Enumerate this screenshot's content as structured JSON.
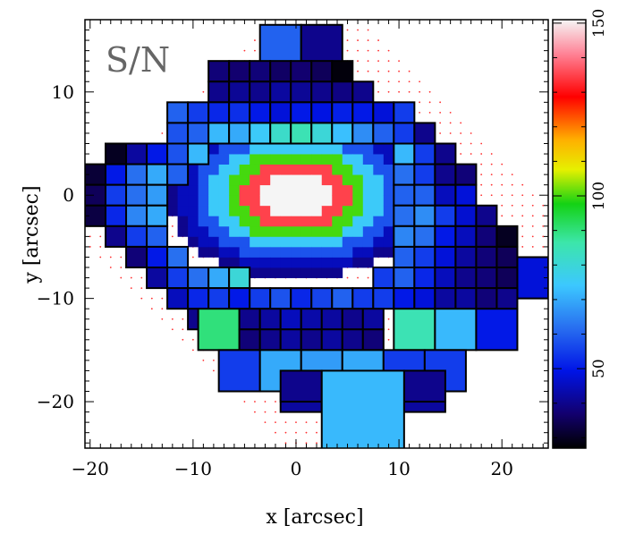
{
  "chart_data": {
    "type": "heatmap",
    "title": "S/N",
    "xlabel": "x [arcsec]",
    "ylabel": "y [arcsec]",
    "xlim": [
      -20.5,
      24.5
    ],
    "ylim": [
      -24.5,
      17
    ],
    "xticks": [
      -20,
      -10,
      0,
      10,
      20
    ],
    "yticks": [
      -20,
      -10,
      0,
      10
    ],
    "colorbar": {
      "range": [
        27,
        151
      ],
      "ticks": [
        50,
        100,
        150
      ]
    },
    "center_bins": [
      {
        "xc": 0,
        "yc": 0,
        "rx": 12.5,
        "ry": 8,
        "cell": 1,
        "rings": [
          {
            "r": 0.3,
            "value": 151
          },
          {
            "r": 0.42,
            "value": 135
          },
          {
            "r": 0.55,
            "value": 100
          },
          {
            "r": 0.68,
            "value": 75
          },
          {
            "r": 0.8,
            "value": 58
          },
          {
            "r": 0.92,
            "value": 45
          },
          {
            "r": 1.01,
            "value": 40
          }
        ]
      }
    ],
    "voronoi_bins": [
      {
        "x": -1.5,
        "y": 14.5,
        "w": 4,
        "h": 4,
        "value": 60
      },
      {
        "x": 2.5,
        "y": 14.5,
        "w": 4,
        "h": 4,
        "value": 40
      },
      {
        "x": -7.5,
        "y": 12,
        "w": 2,
        "h": 2,
        "value": 38
      },
      {
        "x": -5.5,
        "y": 12,
        "w": 2,
        "h": 2,
        "value": 37
      },
      {
        "x": -3.5,
        "y": 12,
        "w": 2,
        "h": 2,
        "value": 38
      },
      {
        "x": -1.5,
        "y": 12,
        "w": 2,
        "h": 2,
        "value": 36
      },
      {
        "x": 0.5,
        "y": 12,
        "w": 2,
        "h": 2,
        "value": 37
      },
      {
        "x": 2.5,
        "y": 12,
        "w": 2,
        "h": 2,
        "value": 35
      },
      {
        "x": 4.5,
        "y": 12,
        "w": 2,
        "h": 2,
        "value": 28
      },
      {
        "x": -7.5,
        "y": 10,
        "w": 2,
        "h": 2,
        "value": 40
      },
      {
        "x": -5.5,
        "y": 10,
        "w": 2,
        "h": 2,
        "value": 41
      },
      {
        "x": -3.5,
        "y": 10,
        "w": 2,
        "h": 2,
        "value": 40
      },
      {
        "x": -1.5,
        "y": 10,
        "w": 2,
        "h": 2,
        "value": 42
      },
      {
        "x": 0.5,
        "y": 10,
        "w": 2,
        "h": 2,
        "value": 41
      },
      {
        "x": 2.5,
        "y": 10,
        "w": 2,
        "h": 2,
        "value": 40
      },
      {
        "x": 4.5,
        "y": 10,
        "w": 2,
        "h": 2,
        "value": 39
      },
      {
        "x": 6.5,
        "y": 10,
        "w": 2,
        "h": 2,
        "value": 40
      },
      {
        "x": -11.5,
        "y": 8,
        "w": 2,
        "h": 2,
        "value": 60
      },
      {
        "x": -9.5,
        "y": 8,
        "w": 2,
        "h": 2,
        "value": 55
      },
      {
        "x": -7.5,
        "y": 8,
        "w": 2,
        "h": 2,
        "value": 52
      },
      {
        "x": -5.5,
        "y": 8,
        "w": 2,
        "h": 2,
        "value": 53
      },
      {
        "x": -3.5,
        "y": 8,
        "w": 2,
        "h": 2,
        "value": 50
      },
      {
        "x": -1.5,
        "y": 8,
        "w": 2,
        "h": 2,
        "value": 48
      },
      {
        "x": 0.5,
        "y": 8,
        "w": 2,
        "h": 2,
        "value": 50
      },
      {
        "x": 2.5,
        "y": 8,
        "w": 2,
        "h": 2,
        "value": 49
      },
      {
        "x": 4.5,
        "y": 8,
        "w": 2,
        "h": 2,
        "value": 51
      },
      {
        "x": 6.5,
        "y": 8,
        "w": 2,
        "h": 2,
        "value": 50
      },
      {
        "x": 8.5,
        "y": 8,
        "w": 2,
        "h": 2,
        "value": 48
      },
      {
        "x": 10.5,
        "y": 8,
        "w": 2,
        "h": 2,
        "value": 55
      },
      {
        "x": -11.5,
        "y": 6,
        "w": 2,
        "h": 2,
        "value": 58
      },
      {
        "x": -9.5,
        "y": 6,
        "w": 2,
        "h": 2,
        "value": 60
      },
      {
        "x": -7.5,
        "y": 6,
        "w": 2,
        "h": 2,
        "value": 72
      },
      {
        "x": -5.5,
        "y": 6,
        "w": 2,
        "h": 2,
        "value": 70
      },
      {
        "x": -3.5,
        "y": 6,
        "w": 2,
        "h": 2,
        "value": 75
      },
      {
        "x": -1.5,
        "y": 6,
        "w": 2,
        "h": 2,
        "value": 82
      },
      {
        "x": 0.5,
        "y": 6,
        "w": 2,
        "h": 2,
        "value": 85
      },
      {
        "x": 2.5,
        "y": 6,
        "w": 2,
        "h": 2,
        "value": 80
      },
      {
        "x": 4.5,
        "y": 6,
        "w": 2,
        "h": 2,
        "value": 73
      },
      {
        "x": 6.5,
        "y": 6,
        "w": 2,
        "h": 2,
        "value": 66
      },
      {
        "x": 8.5,
        "y": 6,
        "w": 2,
        "h": 2,
        "value": 60
      },
      {
        "x": 10.5,
        "y": 6,
        "w": 2,
        "h": 2,
        "value": 55
      },
      {
        "x": 12.5,
        "y": 6,
        "w": 2,
        "h": 2,
        "value": 40
      },
      {
        "x": -17.5,
        "y": 4,
        "w": 2,
        "h": 2,
        "value": 30
      },
      {
        "x": -15.5,
        "y": 4,
        "w": 2,
        "h": 2,
        "value": 42
      },
      {
        "x": -13.5,
        "y": 4,
        "w": 2,
        "h": 2,
        "value": 50
      },
      {
        "x": -11.5,
        "y": 4,
        "w": 2,
        "h": 2,
        "value": 58
      },
      {
        "x": -9.5,
        "y": 4,
        "w": 2,
        "h": 2,
        "value": 72
      },
      {
        "x": 10.5,
        "y": 4,
        "w": 2,
        "h": 2,
        "value": 72
      },
      {
        "x": 12.5,
        "y": 4,
        "w": 2,
        "h": 2,
        "value": 55
      },
      {
        "x": 14.5,
        "y": 4,
        "w": 2,
        "h": 2,
        "value": 40
      },
      {
        "x": -19.5,
        "y": 2,
        "w": 2,
        "h": 2,
        "value": 32
      },
      {
        "x": -17.5,
        "y": 2,
        "w": 2,
        "h": 2,
        "value": 50
      },
      {
        "x": -15.5,
        "y": 2,
        "w": 2,
        "h": 2,
        "value": 62
      },
      {
        "x": -13.5,
        "y": 2,
        "w": 2,
        "h": 2,
        "value": 70
      },
      {
        "x": -11.5,
        "y": 2,
        "w": 2,
        "h": 2,
        "value": 60
      },
      {
        "x": 10.5,
        "y": 2,
        "w": 2,
        "h": 2,
        "value": 62
      },
      {
        "x": 12.5,
        "y": 2,
        "w": 2,
        "h": 2,
        "value": 55
      },
      {
        "x": 14.5,
        "y": 2,
        "w": 2,
        "h": 2,
        "value": 40
      },
      {
        "x": 16.5,
        "y": 2,
        "w": 2,
        "h": 2,
        "value": 38
      },
      {
        "x": -19.5,
        "y": 0,
        "w": 2,
        "h": 2,
        "value": 35
      },
      {
        "x": -17.5,
        "y": 0,
        "w": 2,
        "h": 2,
        "value": 55
      },
      {
        "x": -15.5,
        "y": 0,
        "w": 2,
        "h": 2,
        "value": 62
      },
      {
        "x": -13.5,
        "y": 0,
        "w": 2,
        "h": 2,
        "value": 68
      },
      {
        "x": 10.5,
        "y": 0,
        "w": 2,
        "h": 2,
        "value": 60
      },
      {
        "x": 12.5,
        "y": 0,
        "w": 2,
        "h": 2,
        "value": 60
      },
      {
        "x": 14.5,
        "y": 0,
        "w": 2,
        "h": 2,
        "value": 45
      },
      {
        "x": 16.5,
        "y": 0,
        "w": 2,
        "h": 2,
        "value": 48
      },
      {
        "x": -19.5,
        "y": -2,
        "w": 2,
        "h": 2,
        "value": 33
      },
      {
        "x": -17.5,
        "y": -2,
        "w": 2,
        "h": 2,
        "value": 52
      },
      {
        "x": -15.5,
        "y": -2,
        "w": 2,
        "h": 2,
        "value": 65
      },
      {
        "x": -13.5,
        "y": -2,
        "w": 2,
        "h": 2,
        "value": 70
      },
      {
        "x": 10.5,
        "y": -2,
        "w": 2,
        "h": 2,
        "value": 62
      },
      {
        "x": 12.5,
        "y": -2,
        "w": 2,
        "h": 2,
        "value": 66
      },
      {
        "x": 14.5,
        "y": -2,
        "w": 2,
        "h": 2,
        "value": 55
      },
      {
        "x": 16.5,
        "y": -2,
        "w": 2,
        "h": 2,
        "value": 47
      },
      {
        "x": 18.5,
        "y": -2,
        "w": 2,
        "h": 2,
        "value": 40
      },
      {
        "x": -17.5,
        "y": -4,
        "w": 2,
        "h": 2,
        "value": 40
      },
      {
        "x": -15.5,
        "y": -4,
        "w": 2,
        "h": 2,
        "value": 55
      },
      {
        "x": -13.5,
        "y": -4,
        "w": 2,
        "h": 2,
        "value": 60
      },
      {
        "x": 10.5,
        "y": -4,
        "w": 2,
        "h": 2,
        "value": 65
      },
      {
        "x": 12.5,
        "y": -4,
        "w": 2,
        "h": 2,
        "value": 62
      },
      {
        "x": 14.5,
        "y": -4,
        "w": 2,
        "h": 2,
        "value": 50
      },
      {
        "x": 16.5,
        "y": -4,
        "w": 2,
        "h": 2,
        "value": 45
      },
      {
        "x": 18.5,
        "y": -4,
        "w": 2,
        "h": 2,
        "value": 38
      },
      {
        "x": 20.5,
        "y": -4,
        "w": 2,
        "h": 2,
        "value": 30
      },
      {
        "x": -15.5,
        "y": -6,
        "w": 2,
        "h": 2,
        "value": 38
      },
      {
        "x": -13.5,
        "y": -6,
        "w": 2,
        "h": 2,
        "value": 50
      },
      {
        "x": -11.5,
        "y": -6,
        "w": 2,
        "h": 2,
        "value": 62
      },
      {
        "x": 10.5,
        "y": -6,
        "w": 2,
        "h": 2,
        "value": 60
      },
      {
        "x": 12.5,
        "y": -6,
        "w": 2,
        "h": 2,
        "value": 55
      },
      {
        "x": 14.5,
        "y": -6,
        "w": 2,
        "h": 2,
        "value": 48
      },
      {
        "x": 16.5,
        "y": -6,
        "w": 2,
        "h": 2,
        "value": 42
      },
      {
        "x": 18.5,
        "y": -6,
        "w": 2,
        "h": 2,
        "value": 38
      },
      {
        "x": 20.5,
        "y": -6,
        "w": 2,
        "h": 2,
        "value": 35
      },
      {
        "x": -13.5,
        "y": -8,
        "w": 2,
        "h": 2,
        "value": 42
      },
      {
        "x": -11.5,
        "y": -8,
        "w": 2,
        "h": 2,
        "value": 55
      },
      {
        "x": -9.5,
        "y": -8,
        "w": 2,
        "h": 2,
        "value": 62
      },
      {
        "x": -7.5,
        "y": -8,
        "w": 2,
        "h": 2,
        "value": 70
      },
      {
        "x": -5.5,
        "y": -8,
        "w": 2,
        "h": 2,
        "value": 80
      },
      {
        "x": 8.5,
        "y": -8,
        "w": 2,
        "h": 2,
        "value": 55
      },
      {
        "x": 10.5,
        "y": -8,
        "w": 2,
        "h": 2,
        "value": 60
      },
      {
        "x": 12.5,
        "y": -8,
        "w": 2,
        "h": 2,
        "value": 52
      },
      {
        "x": 14.5,
        "y": -8,
        "w": 2,
        "h": 2,
        "value": 45
      },
      {
        "x": 16.5,
        "y": -8,
        "w": 2,
        "h": 2,
        "value": 40
      },
      {
        "x": 18.5,
        "y": -8,
        "w": 2,
        "h": 2,
        "value": 38
      },
      {
        "x": 20.5,
        "y": -8,
        "w": 2,
        "h": 2,
        "value": 35
      },
      {
        "x": 23,
        "y": -8,
        "w": 3,
        "h": 4,
        "value": 48
      },
      {
        "x": -11.5,
        "y": -10,
        "w": 2,
        "h": 2,
        "value": 45
      },
      {
        "x": -9.5,
        "y": -10,
        "w": 2,
        "h": 2,
        "value": 52
      },
      {
        "x": -7.5,
        "y": -10,
        "w": 2,
        "h": 2,
        "value": 55
      },
      {
        "x": -5.5,
        "y": -10,
        "w": 2,
        "h": 2,
        "value": 50
      },
      {
        "x": -3.5,
        "y": -10,
        "w": 2,
        "h": 2,
        "value": 55
      },
      {
        "x": -1.5,
        "y": -10,
        "w": 2,
        "h": 2,
        "value": 58
      },
      {
        "x": 0.5,
        "y": -10,
        "w": 2,
        "h": 2,
        "value": 52
      },
      {
        "x": 2.5,
        "y": -10,
        "w": 2,
        "h": 2,
        "value": 56
      },
      {
        "x": 4.5,
        "y": -10,
        "w": 2,
        "h": 2,
        "value": 60
      },
      {
        "x": 6.5,
        "y": -10,
        "w": 2,
        "h": 2,
        "value": 55
      },
      {
        "x": 8.5,
        "y": -10,
        "w": 2,
        "h": 2,
        "value": 55
      },
      {
        "x": 10.5,
        "y": -10,
        "w": 2,
        "h": 2,
        "value": 50
      },
      {
        "x": 12.5,
        "y": -10,
        "w": 2,
        "h": 2,
        "value": 48
      },
      {
        "x": 14.5,
        "y": -10,
        "w": 2,
        "h": 2,
        "value": 42
      },
      {
        "x": 16.5,
        "y": -10,
        "w": 2,
        "h": 2,
        "value": 42
      },
      {
        "x": 18.5,
        "y": -10,
        "w": 2,
        "h": 2,
        "value": 38
      },
      {
        "x": 20.5,
        "y": -10,
        "w": 2,
        "h": 2,
        "value": 40
      },
      {
        "x": -9.5,
        "y": -12,
        "w": 2,
        "h": 2,
        "value": 40
      },
      {
        "x": -7.5,
        "y": -13,
        "w": 4,
        "h": 4,
        "value": 90
      },
      {
        "x": -4.5,
        "y": -12,
        "w": 2,
        "h": 2,
        "value": 40
      },
      {
        "x": -2.5,
        "y": -12,
        "w": 2,
        "h": 2,
        "value": 42
      },
      {
        "x": -0.5,
        "y": -12,
        "w": 2,
        "h": 2,
        "value": 45
      },
      {
        "x": 1.5,
        "y": -12,
        "w": 2,
        "h": 2,
        "value": 43
      },
      {
        "x": 3.5,
        "y": -12,
        "w": 2,
        "h": 2,
        "value": 42
      },
      {
        "x": 5.5,
        "y": -12,
        "w": 2,
        "h": 2,
        "value": 40
      },
      {
        "x": 7.5,
        "y": -12,
        "w": 2,
        "h": 2,
        "value": 42
      },
      {
        "x": -4.5,
        "y": -14,
        "w": 2,
        "h": 2,
        "value": 38
      },
      {
        "x": -2.5,
        "y": -14,
        "w": 2,
        "h": 2,
        "value": 40
      },
      {
        "x": -0.5,
        "y": -14,
        "w": 2,
        "h": 2,
        "value": 42
      },
      {
        "x": 1.5,
        "y": -14,
        "w": 2,
        "h": 2,
        "value": 40
      },
      {
        "x": 3.5,
        "y": -14,
        "w": 2,
        "h": 2,
        "value": 42
      },
      {
        "x": 5.5,
        "y": -14,
        "w": 2,
        "h": 2,
        "value": 40
      },
      {
        "x": 7.5,
        "y": -14,
        "w": 2,
        "h": 2,
        "value": 38
      },
      {
        "x": 11.5,
        "y": -13,
        "w": 4,
        "h": 4,
        "value": 85
      },
      {
        "x": 15.5,
        "y": -13,
        "w": 4,
        "h": 4,
        "value": 72
      },
      {
        "x": 19.5,
        "y": -13,
        "w": 4,
        "h": 4,
        "value": 50
      },
      {
        "x": -5.5,
        "y": -17,
        "w": 4,
        "h": 4,
        "value": 55
      },
      {
        "x": -1.5,
        "y": -17,
        "w": 4,
        "h": 4,
        "value": 70
      },
      {
        "x": 2.5,
        "y": -17,
        "w": 4,
        "h": 4,
        "value": 68
      },
      {
        "x": 6.5,
        "y": -17,
        "w": 4,
        "h": 4,
        "value": 70
      },
      {
        "x": 10.5,
        "y": -17,
        "w": 4,
        "h": 4,
        "value": 55
      },
      {
        "x": 14.5,
        "y": -17,
        "w": 4,
        "h": 4,
        "value": 55
      },
      {
        "x": 0.5,
        "y": -20,
        "w": 4,
        "h": 2,
        "value": 42
      },
      {
        "x": 12.5,
        "y": -20,
        "w": 4,
        "h": 2,
        "value": 42
      },
      {
        "x": 0.5,
        "y": -18.5,
        "w": 4,
        "h": 3,
        "value": 40
      },
      {
        "x": 12.5,
        "y": -18.5,
        "w": 4,
        "h": 3,
        "value": 40
      },
      {
        "x": 6.5,
        "y": -22,
        "w": 8,
        "h": 10,
        "value": 72
      }
    ]
  }
}
